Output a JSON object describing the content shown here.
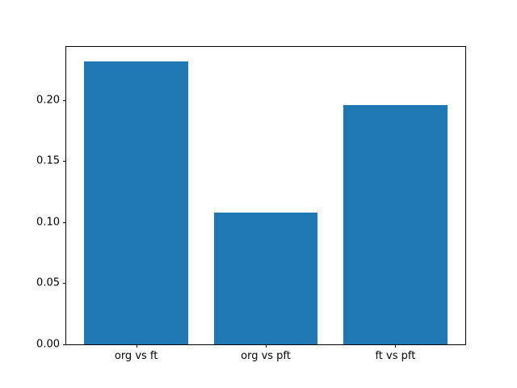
{
  "figure": {
    "background_color": "#ffffff",
    "spine_color": "#000000",
    "text_color": "#000000"
  },
  "chart_data": {
    "type": "bar",
    "title": "",
    "xlabel": "",
    "ylabel": "",
    "categories": [
      "org vs ft",
      "org vs pft",
      "ft vs pft"
    ],
    "values": [
      0.232,
      0.108,
      0.196
    ],
    "bar_color": "#1f77b4",
    "bar_width_ratio": 0.8,
    "xlim": [
      -0.54,
      2.54
    ],
    "ylim": [
      0,
      0.2436
    ],
    "yticks": [
      0.0,
      0.05,
      0.1,
      0.15,
      0.2
    ],
    "ytick_labels": [
      "0.00",
      "0.05",
      "0.10",
      "0.15",
      "0.20"
    ],
    "grid": false,
    "legend": null
  }
}
